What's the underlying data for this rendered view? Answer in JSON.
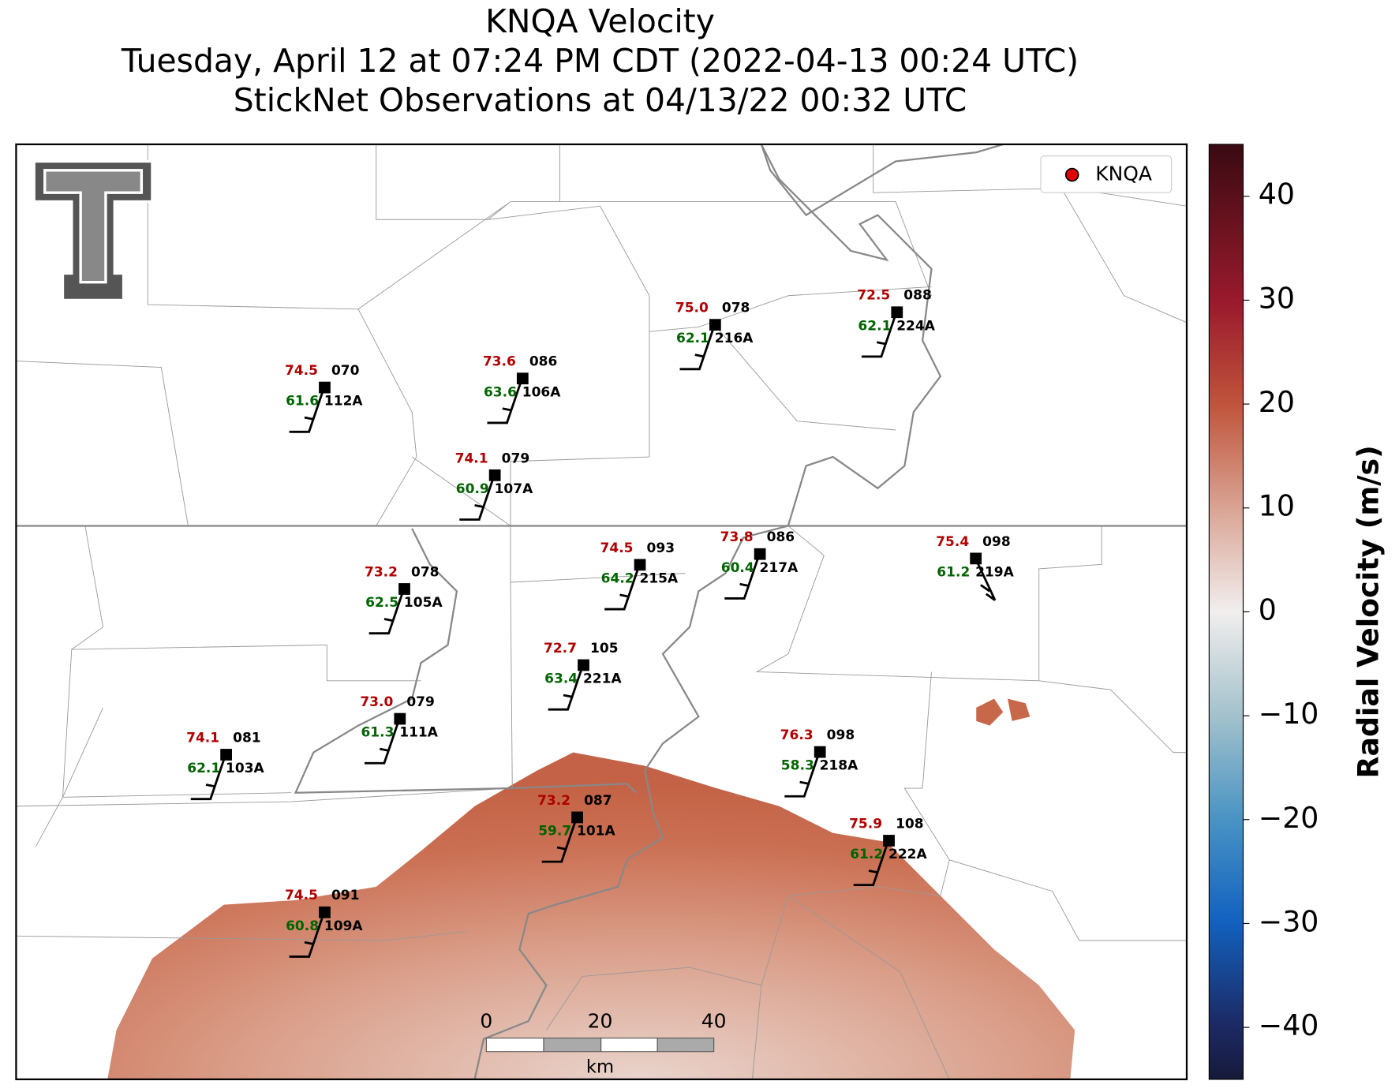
{
  "title": [
    "KNQA Velocity",
    "Tuesday, April 12 at 07:24 PM CDT (2022-04-13 00:24 UTC)",
    "StickNet Observations at 04/13/22 00:32 UTC"
  ],
  "legend": {
    "label": "KNQA",
    "color": "#e00000"
  },
  "colorbar": {
    "label": "Radial Velocity (m/s)",
    "lim": [
      -45,
      45
    ],
    "ticks": [
      {
        "value": -40,
        "label": "−40"
      },
      {
        "value": -30,
        "label": "−30"
      },
      {
        "value": -20,
        "label": "−20"
      },
      {
        "value": -10,
        "label": "−10"
      },
      0,
      10,
      20,
      30,
      40
    ]
  },
  "scale_bar": {
    "ticks": [
      0,
      20,
      40
    ],
    "unit": "km"
  },
  "stations": [
    {
      "id": "112A",
      "temperature": "74.5",
      "dewpoint": "61.6",
      "code": "070"
    },
    {
      "id": "106A",
      "temperature": "73.6",
      "dewpoint": "63.6",
      "code": "086"
    },
    {
      "id": "216A",
      "temperature": "75.0",
      "dewpoint": "62.1",
      "code": "078"
    },
    {
      "id": "224A",
      "temperature": "72.5",
      "dewpoint": "62.1",
      "code": "088"
    },
    {
      "id": "107A",
      "temperature": "74.1",
      "dewpoint": "60.9",
      "code": "079"
    },
    {
      "id": "105A",
      "temperature": "73.2",
      "dewpoint": "62.5",
      "code": "078"
    },
    {
      "id": "215A",
      "temperature": "74.5",
      "dewpoint": "64.2",
      "code": "093"
    },
    {
      "id": "217A",
      "temperature": "73.8",
      "dewpoint": "60.4",
      "code": "086"
    },
    {
      "id": "219A",
      "temperature": "75.4",
      "dewpoint": "61.2",
      "code": "098"
    },
    {
      "id": "221A",
      "temperature": "72.7",
      "dewpoint": "63.4",
      "code": "105"
    },
    {
      "id": "111A",
      "temperature": "73.0",
      "dewpoint": "61.3",
      "code": "079"
    },
    {
      "id": "103A",
      "temperature": "74.1",
      "dewpoint": "62.1",
      "code": "081"
    },
    {
      "id": "218A",
      "temperature": "76.3",
      "dewpoint": "58.3",
      "code": "098"
    },
    {
      "id": "101A",
      "temperature": "73.2",
      "dewpoint": "59.7",
      "code": "087"
    },
    {
      "id": "222A",
      "temperature": "75.9",
      "dewpoint": "61.2",
      "code": "108"
    },
    {
      "id": "109A",
      "temperature": "74.5",
      "dewpoint": "60.8",
      "code": "091"
    }
  ]
}
